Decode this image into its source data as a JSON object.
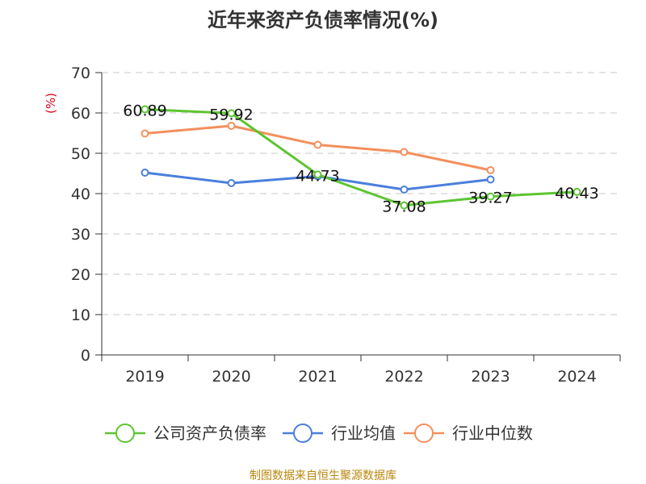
{
  "chart_data": {
    "type": "line",
    "title": "近年来资产负债率情况(%)",
    "unit_label": "(%)",
    "categories": [
      "2019",
      "2020",
      "2021",
      "2022",
      "2023",
      "2024"
    ],
    "ylim": [
      0,
      70
    ],
    "yticks": [
      "0",
      "10",
      "20",
      "30",
      "40",
      "50",
      "60",
      "70"
    ],
    "grid": true,
    "legend_position": "bottom",
    "series": [
      {
        "name": "公司资产负债率",
        "color": "#5cc531",
        "values": [
          60.89,
          59.92,
          44.73,
          37.08,
          39.27,
          40.43
        ],
        "labels": [
          "60.89",
          "59.92",
          "44.73",
          "37.08",
          "39.27",
          "40.43"
        ]
      },
      {
        "name": "行业均值",
        "color": "#4a7fdc",
        "values": [
          45.2,
          42.6,
          44.3,
          41.0,
          43.5,
          null
        ]
      },
      {
        "name": "行业中位数",
        "color": "#f28f5c",
        "values": [
          54.9,
          56.8,
          52.1,
          50.3,
          45.8,
          null
        ]
      }
    ],
    "source": "制图数据来自恒生聚源数据库"
  }
}
